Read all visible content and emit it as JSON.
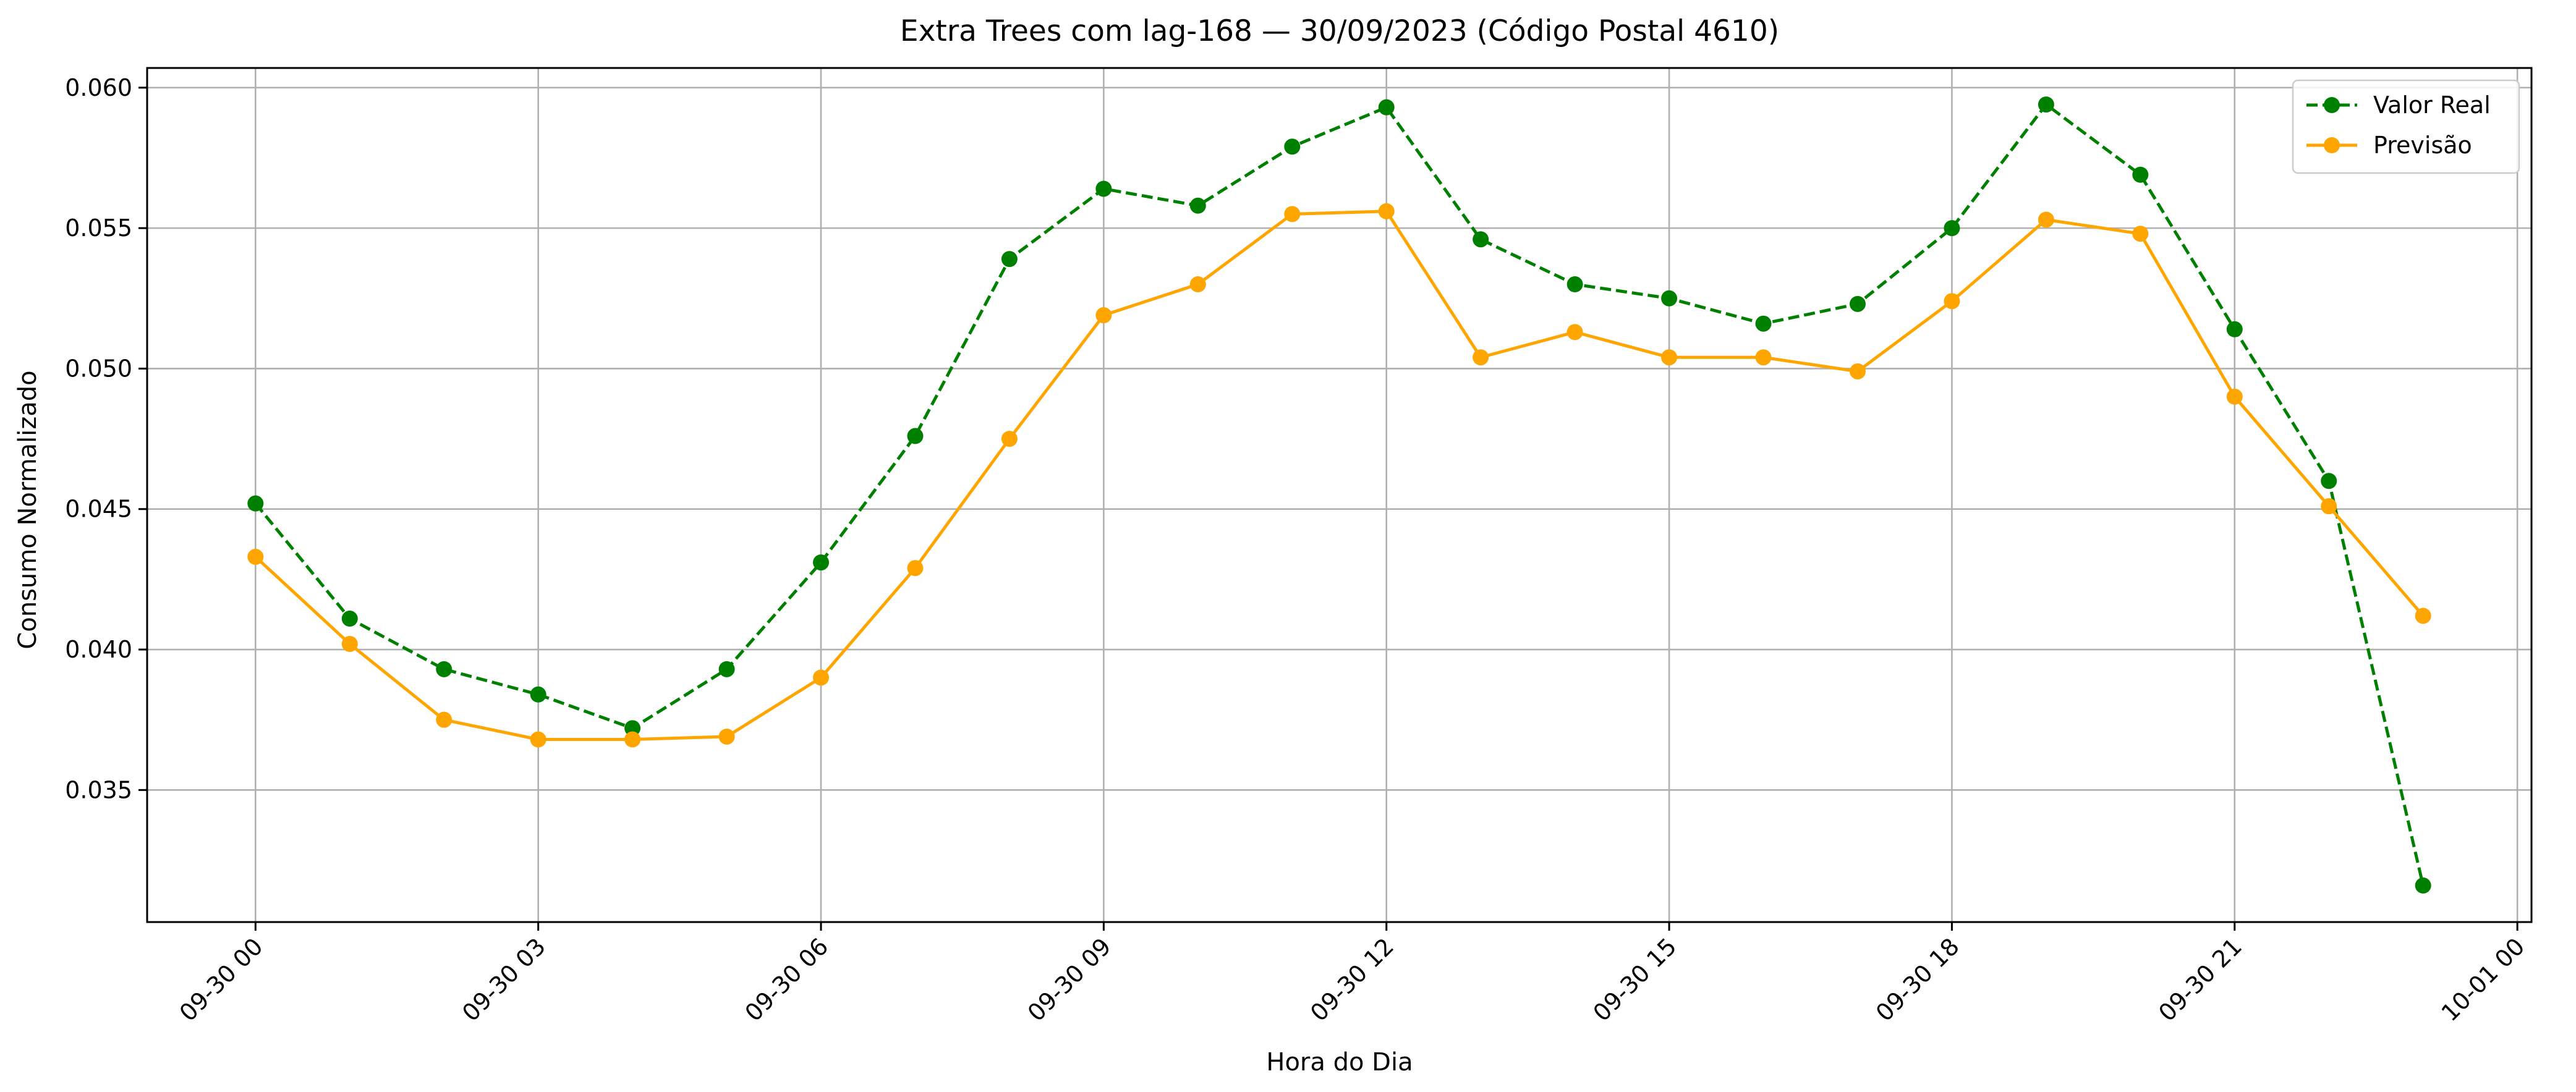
{
  "chart_data": {
    "type": "line",
    "title": "Extra Trees com lag-168 — 30/09/2023 (Código Postal 4610)",
    "xlabel": "Hora do Dia",
    "ylabel": "Consumo Normalizado",
    "x": [
      "09-30 00",
      "09-30 01",
      "09-30 02",
      "09-30 03",
      "09-30 04",
      "09-30 05",
      "09-30 06",
      "09-30 07",
      "09-30 08",
      "09-30 09",
      "09-30 10",
      "09-30 11",
      "09-30 12",
      "09-30 13",
      "09-30 14",
      "09-30 15",
      "09-30 16",
      "09-30 17",
      "09-30 18",
      "09-30 19",
      "09-30 20",
      "09-30 21",
      "09-30 22",
      "09-30 23"
    ],
    "xticks": [
      "09-30 00",
      "09-30 03",
      "09-30 06",
      "09-30 09",
      "09-30 12",
      "09-30 15",
      "09-30 18",
      "09-30 21",
      "10-01 00"
    ],
    "xlim": [
      -1.15,
      24.15
    ],
    "yticks": [
      "0.035",
      "0.040",
      "0.045",
      "0.050",
      "0.055",
      "0.060"
    ],
    "ylim": [
      0.0303,
      0.0607
    ],
    "grid": true,
    "legend_position": "top-right",
    "series": [
      {
        "name": "Valor Real",
        "color": "#008000",
        "style": "dashed",
        "marker": "circle",
        "values": [
          0.0452,
          0.0411,
          0.0393,
          0.0384,
          0.0372,
          0.0393,
          0.0431,
          0.0476,
          0.0539,
          0.0564,
          0.0558,
          0.0579,
          0.0593,
          0.0546,
          0.053,
          0.0525,
          0.0516,
          0.0523,
          0.055,
          0.0594,
          0.0569,
          0.0514,
          0.046,
          0.0316
        ]
      },
      {
        "name": "Previsão",
        "color": "#FFA500",
        "style": "solid",
        "marker": "circle",
        "values": [
          0.0433,
          0.0402,
          0.0375,
          0.0368,
          0.0368,
          0.0369,
          0.039,
          0.0429,
          0.0475,
          0.0519,
          0.053,
          0.0555,
          0.0556,
          0.0504,
          0.0513,
          0.0504,
          0.0504,
          0.0499,
          0.0524,
          0.0553,
          0.0548,
          0.049,
          0.0451,
          0.0412
        ]
      }
    ]
  }
}
